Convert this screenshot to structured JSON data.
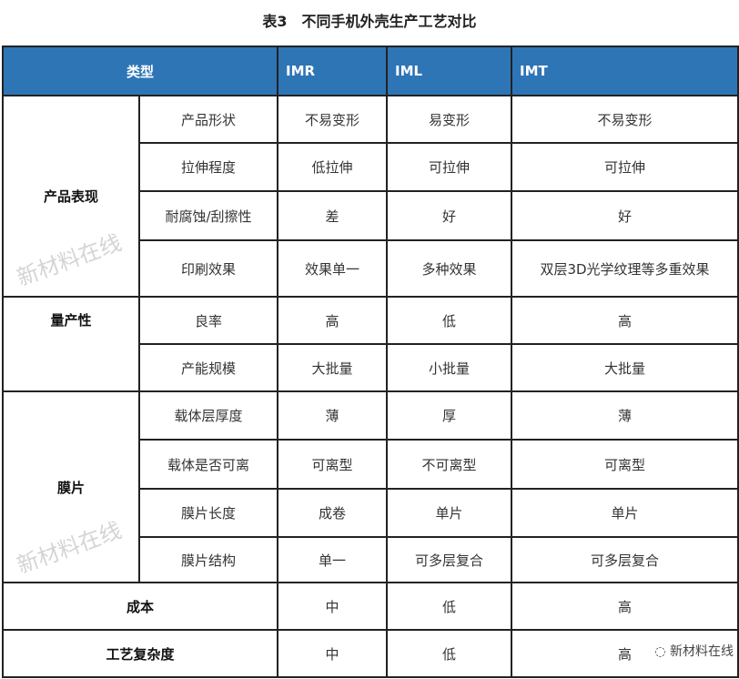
{
  "title": "表3　不同手机外壳生产工艺对比",
  "header": {
    "type": "类型",
    "c1": "IMR",
    "c2": "IML",
    "c3": "IMT"
  },
  "groups": [
    {
      "label": "产品表现",
      "rows": [
        {
          "item": "产品形状",
          "v": [
            "不易变形",
            "易变形",
            "不易变形"
          ]
        },
        {
          "item": "拉伸程度",
          "v": [
            "低拉伸",
            "可拉伸",
            "可拉伸"
          ]
        },
        {
          "item": "耐腐蚀/刮擦性",
          "v": [
            "差",
            "好",
            "好"
          ]
        },
        {
          "item": "印刷效果",
          "v": [
            "效果单一",
            "多种效果",
            "双层3D光学纹理等多重效果"
          ]
        }
      ]
    },
    {
      "label": "量产性",
      "rows": [
        {
          "item": "良率",
          "v": [
            "高",
            "低",
            "高"
          ]
        },
        {
          "item": "产能规模",
          "v": [
            "大批量",
            "小批量",
            "大批量"
          ]
        }
      ]
    },
    {
      "label": "膜片",
      "rows": [
        {
          "item": "载体层厚度",
          "v": [
            "薄",
            "厚",
            "薄"
          ]
        },
        {
          "item": "载体是否可离",
          "v": [
            "可离型",
            "不可离型",
            "可离型"
          ]
        },
        {
          "item": "膜片长度",
          "v": [
            "成卷",
            "单片",
            "单片"
          ]
        },
        {
          "item": "膜片结构",
          "v": [
            "单一",
            "可多层复合",
            "可多层复合"
          ]
        }
      ]
    }
  ],
  "singles": [
    {
      "label": "成本",
      "v": [
        "中",
        "低",
        "高"
      ]
    },
    {
      "label": "工艺复杂度",
      "v": [
        "中",
        "低",
        "高"
      ]
    }
  ],
  "watermark": "新材料在线",
  "logo_text": "新材料在线"
}
